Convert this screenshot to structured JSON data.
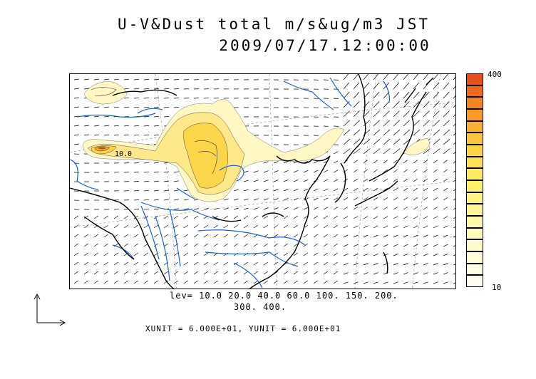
{
  "title": {
    "line1": "U-V&Dust total m/s&ug/m3 JST",
    "line2": "2009/07/17.12:00:00"
  },
  "legend": {
    "max_label": "400",
    "min_label": "10",
    "colors": [
      "#e8501a",
      "#f06a1c",
      "#f5831f",
      "#f89a24",
      "#fab02c",
      "#fcc437",
      "#fdd443",
      "#fde24f",
      "#feec5c",
      "#fef26c",
      "#fff57f",
      "#fff792",
      "#fff9a6",
      "#fffab8",
      "#fffbc9",
      "#fffcd8",
      "#fffde5",
      "#fffdf0"
    ]
  },
  "contour_levels": {
    "line1": "lev= 10.0 20.0 40.0 60.0 100. 150. 200.",
    "line2": "300. 400."
  },
  "contour_label": "10.0",
  "units": "XUNIT = 6.000E+01, YUNIT = 6.000E+01",
  "colors": {
    "coastline": "#000000",
    "rivers": "#1a5fe0",
    "dust_light": "#fff8c4",
    "dust_mid": "#fce45a",
    "dust_high": "#f5831f"
  }
}
